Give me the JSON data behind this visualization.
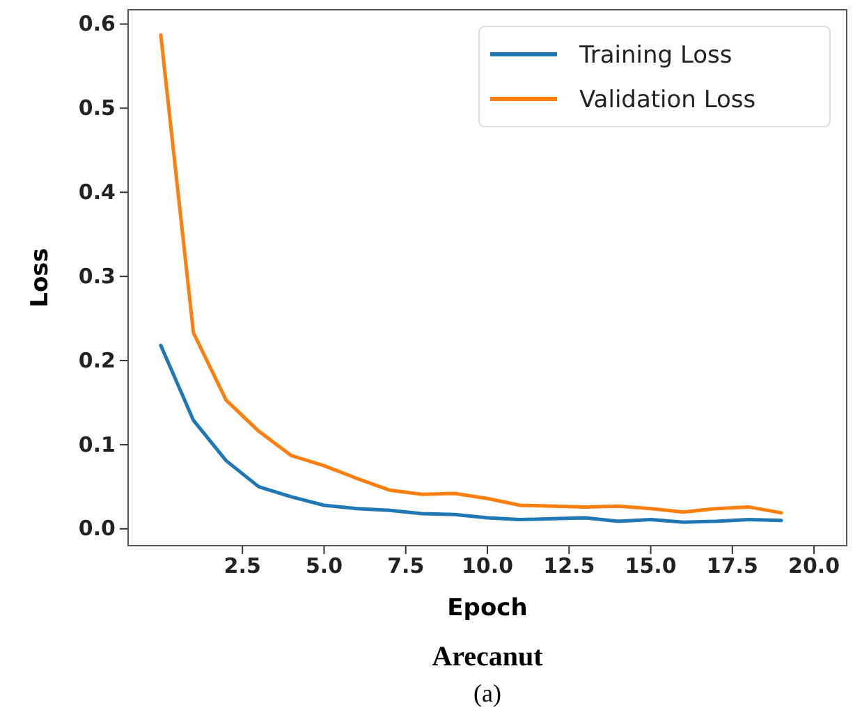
{
  "chart_data": {
    "type": "line",
    "title": "Arecanut",
    "xlabel": "Epoch",
    "ylabel": "Loss",
    "annotations": [
      "(a)"
    ],
    "x": [
      0,
      1,
      2,
      3,
      4,
      5,
      6,
      7,
      8,
      9,
      10,
      11,
      12,
      13,
      14,
      15,
      16,
      17,
      18,
      19
    ],
    "series": [
      {
        "name": "Training Loss",
        "color": "#1f77b4",
        "values": [
          0.218,
          0.129,
          0.081,
          0.05,
          0.038,
          0.028,
          0.024,
          0.022,
          0.018,
          0.017,
          0.013,
          0.011,
          0.012,
          0.013,
          0.009,
          0.011,
          0.008,
          0.009,
          0.011,
          0.01
        ]
      },
      {
        "name": "Validation Loss",
        "color": "#ff7f0e",
        "values": [
          0.587,
          0.233,
          0.153,
          0.116,
          0.087,
          0.075,
          0.06,
          0.046,
          0.041,
          0.042,
          0.036,
          0.028,
          0.027,
          0.026,
          0.027,
          0.024,
          0.02,
          0.024,
          0.026,
          0.019
        ]
      }
    ],
    "xlim": [
      -1,
      21
    ],
    "xticks": [
      {
        "value": 2.5,
        "label": "2.5"
      },
      {
        "value": 5,
        "label": "5.0"
      },
      {
        "value": 7.5,
        "label": "7.5"
      },
      {
        "value": 10,
        "label": "10.0"
      },
      {
        "value": 12.5,
        "label": "12.5"
      },
      {
        "value": 15,
        "label": "15.0"
      },
      {
        "value": 17.5,
        "label": "17.5"
      },
      {
        "value": 20,
        "label": "20.0"
      }
    ],
    "ylim": [
      -0.02,
      0.617
    ],
    "yticks": [
      {
        "value": 0,
        "label": "0.0"
      },
      0.1,
      0.2,
      0.3,
      0.4,
      0.5,
      0.6
    ],
    "legend": "top right",
    "grid": false
  }
}
